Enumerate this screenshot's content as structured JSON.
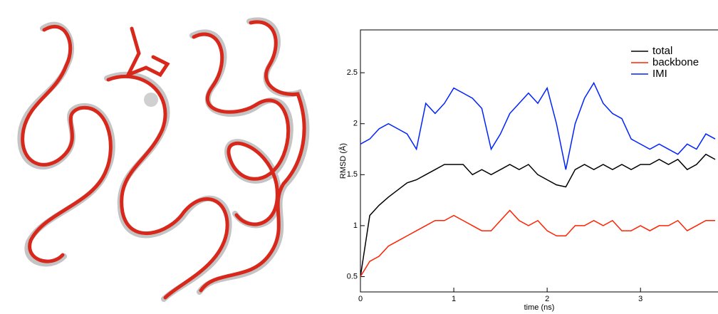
{
  "chart_data": {
    "type": "line",
    "xlabel": "time (ns)",
    "ylabel": "RMSD (Å)",
    "x": [
      0,
      0.1,
      0.2,
      0.3,
      0.4,
      0.5,
      0.6,
      0.7,
      0.8,
      0.9,
      1,
      1.1,
      1.2,
      1.3,
      1.4,
      1.5,
      1.6,
      1.7,
      1.8,
      1.9,
      2,
      2.1,
      2.2,
      2.3,
      2.4,
      2.5,
      2.6,
      2.7,
      2.8,
      2.9,
      3,
      3.1,
      3.2,
      3.3,
      3.4,
      3.5,
      3.6,
      3.7,
      3.8
    ],
    "series": [
      {
        "name": "total",
        "color": "#000000",
        "values": [
          0.5,
          1.1,
          1.2,
          1.28,
          1.35,
          1.42,
          1.45,
          1.5,
          1.55,
          1.6,
          1.6,
          1.6,
          1.5,
          1.55,
          1.5,
          1.55,
          1.6,
          1.55,
          1.6,
          1.5,
          1.45,
          1.4,
          1.38,
          1.55,
          1.6,
          1.55,
          1.6,
          1.55,
          1.6,
          1.55,
          1.6,
          1.6,
          1.65,
          1.6,
          1.65,
          1.55,
          1.6,
          1.7,
          1.65
        ]
      },
      {
        "name": "backbone",
        "color": "#ff2200",
        "values": [
          0.5,
          0.65,
          0.7,
          0.8,
          0.85,
          0.9,
          0.95,
          1.0,
          1.05,
          1.05,
          1.1,
          1.05,
          1.0,
          0.95,
          0.95,
          1.05,
          1.15,
          1.05,
          1.0,
          1.05,
          0.95,
          0.9,
          0.9,
          1.0,
          1.0,
          1.05,
          1.0,
          1.05,
          0.95,
          0.95,
          1.0,
          0.95,
          1.0,
          1.0,
          1.05,
          0.95,
          1.0,
          1.05,
          1.05
        ]
      },
      {
        "name": "IMI",
        "color": "#0022ff",
        "values": [
          1.8,
          1.85,
          1.95,
          2.0,
          1.95,
          1.9,
          1.75,
          2.2,
          2.1,
          2.2,
          2.35,
          2.3,
          2.25,
          2.15,
          1.75,
          1.9,
          2.1,
          2.2,
          2.3,
          2.2,
          2.35,
          2.0,
          1.55,
          2.0,
          2.25,
          2.4,
          2.2,
          2.1,
          2.05,
          1.85,
          1.8,
          1.75,
          1.8,
          1.75,
          1.7,
          1.8,
          1.75,
          1.9,
          1.85
        ]
      }
    ],
    "xlim": [
      0,
      3.83
    ],
    "ylim": [
      0.35,
      2.92
    ],
    "xticks": [
      0,
      1,
      2,
      3
    ],
    "yticks": [
      0.5,
      1,
      1.5,
      2,
      2.5
    ],
    "legend": "upper right"
  }
}
